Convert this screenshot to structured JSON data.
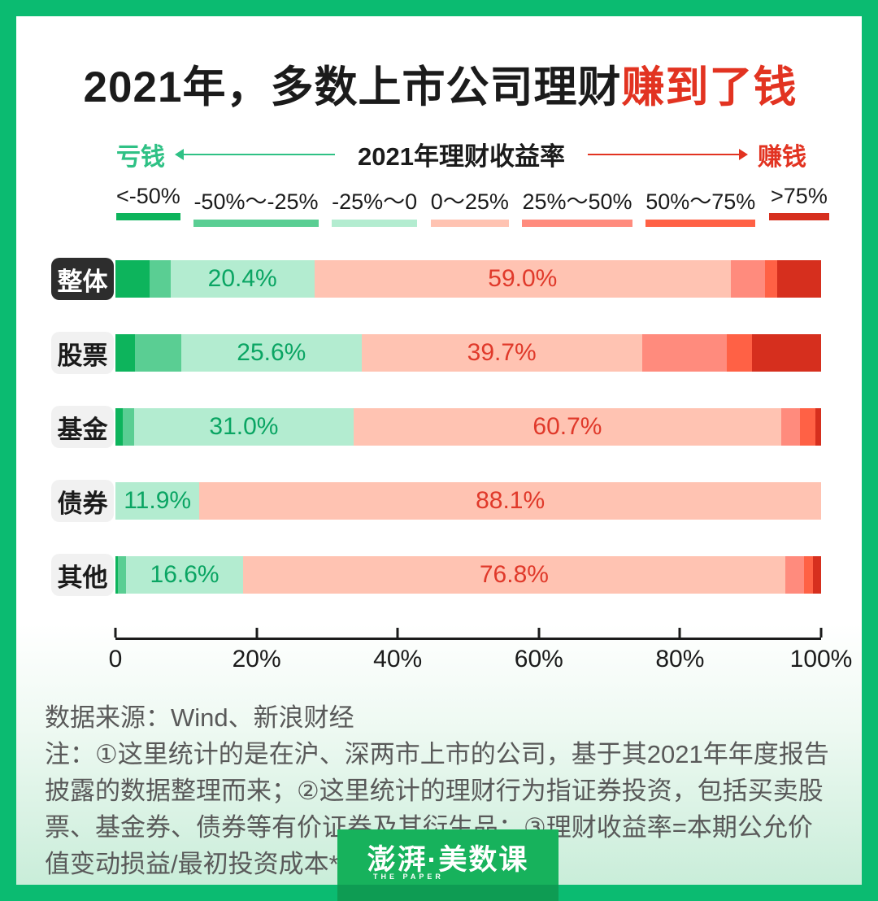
{
  "title": {
    "black_part": "2021年，多数上市公司理财",
    "red_part": "赚到了钱"
  },
  "flow": {
    "left_label": "亏钱",
    "center_label": "2021年理财收益率",
    "right_label": "赚钱"
  },
  "legend": {
    "items": [
      {
        "label": "<-50%",
        "color": "#0db45c"
      },
      {
        "label": "-50%～-25%",
        "color": "#5ace93"
      },
      {
        "label": "-25%～0",
        "color": "#b3ecd0"
      },
      {
        "label": "0～25%",
        "color": "#ffc3b2"
      },
      {
        "label": "25%～50%",
        "color": "#ff8b7d"
      },
      {
        "label": "50%～75%",
        "color": "#ff6145"
      },
      {
        "label": ">75%",
        "color": "#d62f1e"
      }
    ]
  },
  "chart_data": {
    "type": "bar",
    "stacked": true,
    "orientation": "horizontal",
    "title": "2021年，多数上市公司理财赚到了钱",
    "axis_label": "2021年理财收益率",
    "segments": [
      "<-50%",
      "-50%～-25%",
      "-25%～0",
      "0～25%",
      "25%～50%",
      "50%～75%",
      ">75%"
    ],
    "segment_colors": [
      "#0db45c",
      "#5ace93",
      "#b3ecd0",
      "#ffc3b2",
      "#ff8b7d",
      "#ff6145",
      "#d62f1e"
    ],
    "categories": [
      "整体",
      "股票",
      "基金",
      "债券",
      "其他"
    ],
    "rows": [
      {
        "category": "整体",
        "highlight": true,
        "values": [
          4.8,
          3.0,
          20.4,
          59.0,
          4.8,
          1.8,
          6.2
        ],
        "label_green": "20.4%",
        "label_red": "59.0%"
      },
      {
        "category": "股票",
        "highlight": false,
        "values": [
          2.8,
          6.5,
          25.6,
          39.7,
          12.0,
          3.6,
          9.8
        ],
        "label_green": "25.6%",
        "label_red": "39.7%"
      },
      {
        "category": "基金",
        "highlight": false,
        "values": [
          1.0,
          1.7,
          31.0,
          60.7,
          2.6,
          2.2,
          0.8
        ],
        "label_green": "31.0%",
        "label_red": "60.7%"
      },
      {
        "category": "债券",
        "highlight": false,
        "values": [
          0,
          0,
          11.9,
          88.1,
          0,
          0,
          0
        ],
        "label_green": "11.9%",
        "label_red": "88.1%"
      },
      {
        "category": "其他",
        "highlight": false,
        "values": [
          0.4,
          1.1,
          16.6,
          76.8,
          2.7,
          1.3,
          1.1
        ],
        "label_green": "16.6%",
        "label_red": "76.8%"
      }
    ],
    "x_ticks": [
      "0",
      "20%",
      "40%",
      "60%",
      "80%",
      "100%"
    ],
    "xlim": [
      0,
      100
    ],
    "grid": false,
    "legend_position": "top"
  },
  "footer": {
    "source": "数据来源：Wind、新浪财经",
    "note": "注：①这里统计的是在沪、深两市上市的公司，基于其2021年年度报告披露的数据整理而来；②这里统计的理财行为指证券投资，包括买卖股票、基金券、债券等有价证券及其衍生品；③理财收益率=本期公允价值变动损益/最初投资成本*100%。"
  },
  "logo": {
    "text": "澎湃·美数课",
    "subtext": "THE PAPER"
  },
  "colors": {
    "frame_green": "#0bbb71",
    "loss_green": "#2fc185",
    "gain_red": "#e23321",
    "green_value_text": "#0aa563",
    "red_value_text": "#e0392a",
    "card_gradient_bottom": "#c9edd9",
    "logo_green": "#17b25c",
    "logo_dark_green": "#0e9c53",
    "highlight_label_bg": "#2d2d2d",
    "label_bg": "#f1f1f1"
  }
}
